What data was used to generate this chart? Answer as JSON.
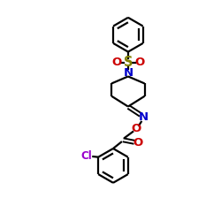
{
  "bg_color": "#ffffff",
  "line_color": "#000000",
  "N_color": "#0000cc",
  "O_color": "#cc0000",
  "S_color": "#808000",
  "Cl_color": "#9900cc",
  "line_width": 1.6,
  "font_size": 8.5,
  "fig_size": [
    2.5,
    2.5
  ],
  "dpi": 100,
  "xlim": [
    0,
    10
  ],
  "ylim": [
    0,
    10
  ]
}
